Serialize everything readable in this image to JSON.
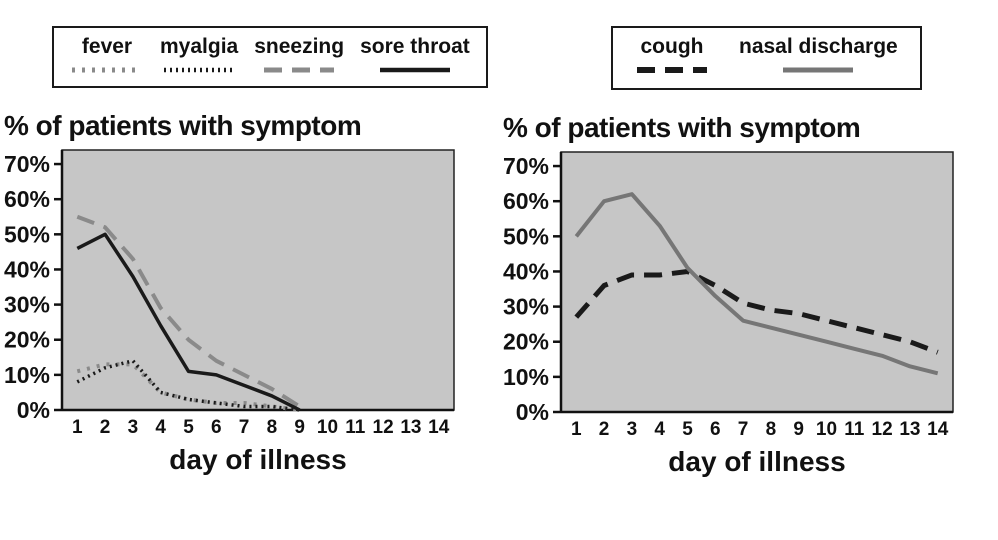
{
  "chart_data": [
    {
      "type": "line",
      "title": "% of patients with symptom",
      "xlabel": "day of illness",
      "x": [
        1,
        2,
        3,
        4,
        5,
        6,
        7,
        8,
        9,
        10,
        11,
        12,
        13,
        14
      ],
      "ylim": [
        0,
        70
      ],
      "ytick_step": 10,
      "ytick_labels": [
        "0%",
        "10%",
        "20%",
        "30%",
        "40%",
        "50%",
        "60%",
        "70%"
      ],
      "xtick_labels": [
        "1",
        "2",
        "3",
        "4",
        "5",
        "6",
        "7",
        "8",
        "9",
        "10",
        "11",
        "12",
        "13",
        "14"
      ],
      "plot_bg": "#c6c6c6",
      "grid": false,
      "legend_position": "top-box",
      "series": [
        {
          "name": "fever",
          "color": "#8a8a8a",
          "dash": "3 7",
          "width": 4,
          "values": [
            11,
            13,
            13,
            5,
            3,
            2,
            2,
            1,
            0
          ]
        },
        {
          "name": "myalgia",
          "color": "#1a1a1a",
          "dash": "2 4",
          "width": 3.5,
          "values": [
            8,
            12,
            14,
            5,
            3,
            2,
            1,
            1,
            0
          ]
        },
        {
          "name": "sneezing",
          "color": "#8a8a8a",
          "dash": "18 10",
          "width": 4,
          "values": [
            55,
            52,
            43,
            29,
            20,
            14,
            10,
            6,
            1
          ]
        },
        {
          "name": "sore throat",
          "color": "#1a1a1a",
          "dash": null,
          "width": 3.5,
          "values": [
            46,
            50,
            38,
            24,
            11,
            10,
            7,
            4,
            0
          ]
        }
      ]
    },
    {
      "type": "line",
      "title": "% of patients with symptom",
      "xlabel": "day of illness",
      "x": [
        1,
        2,
        3,
        4,
        5,
        6,
        7,
        8,
        9,
        10,
        11,
        12,
        13,
        14
      ],
      "ylim": [
        0,
        70
      ],
      "ytick_step": 10,
      "ytick_labels": [
        "0%",
        "10%",
        "20%",
        "30%",
        "40%",
        "50%",
        "60%",
        "70%"
      ],
      "xtick_labels": [
        "1",
        "2",
        "3",
        "4",
        "5",
        "6",
        "7",
        "8",
        "9",
        "10",
        "11",
        "12",
        "13",
        "14"
      ],
      "plot_bg": "#c6c6c6",
      "grid": false,
      "legend_position": "top-box",
      "series": [
        {
          "name": "cough",
          "color": "#1a1a1a",
          "dash": "18 10",
          "width": 5,
          "values": [
            27,
            36,
            39,
            39,
            40,
            36,
            31,
            29,
            28,
            26,
            24,
            22,
            20,
            17
          ]
        },
        {
          "name": "nasal discharge",
          "color": "#767676",
          "dash": null,
          "width": 4,
          "values": [
            50,
            60,
            62,
            53,
            41,
            33,
            26,
            24,
            22,
            20,
            18,
            16,
            13,
            11
          ]
        }
      ]
    }
  ]
}
